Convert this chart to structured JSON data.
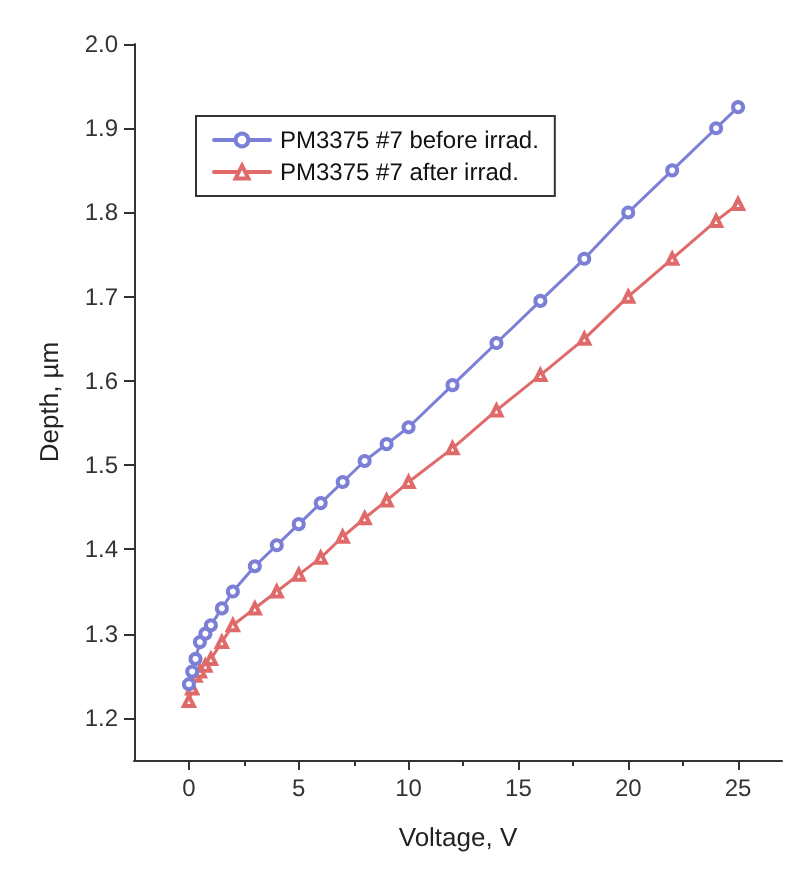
{
  "chart_data": {
    "type": "line",
    "xlabel": "Voltage, V",
    "ylabel": "Depth, µm",
    "xlim": [
      -2.5,
      27
    ],
    "xticks": [
      0,
      5,
      10,
      15,
      20,
      25
    ],
    "ylim": [
      1.15,
      2.0
    ],
    "yticks": [
      1.2,
      1.3,
      1.4,
      1.5,
      1.6,
      1.7,
      1.8,
      1.9,
      {
        "value": 2,
        "label": "2.0"
      }
    ],
    "grid": false,
    "legend": "top left",
    "x": [
      0,
      0.15,
      0.3,
      0.5,
      0.75,
      1,
      1.5,
      2,
      3,
      4,
      5,
      6,
      7,
      8,
      9,
      10,
      12,
      14,
      16,
      18,
      20,
      22,
      24,
      25
    ],
    "series": [
      {
        "name": "PM3375 #7 before irrad.",
        "color": "#7b7fd6",
        "marker": "circle",
        "values": [
          1.24,
          1.255,
          1.27,
          1.29,
          1.3,
          1.31,
          1.33,
          1.35,
          1.38,
          1.405,
          1.43,
          1.455,
          1.48,
          1.505,
          1.525,
          1.545,
          1.595,
          1.645,
          1.695,
          1.745,
          1.8,
          1.85,
          1.9,
          1.925
        ]
      },
      {
        "name": "PM3375 #7 after irrad.",
        "color": "#e06a6a",
        "marker": "triangle",
        "values": [
          1.22,
          1.235,
          1.25,
          1.255,
          1.262,
          1.27,
          1.29,
          1.31,
          1.33,
          1.35,
          1.37,
          1.39,
          1.415,
          1.437,
          1.458,
          1.48,
          1.52,
          1.565,
          1.607,
          1.65,
          1.7,
          1.745,
          1.79,
          1.81
        ]
      }
    ]
  }
}
